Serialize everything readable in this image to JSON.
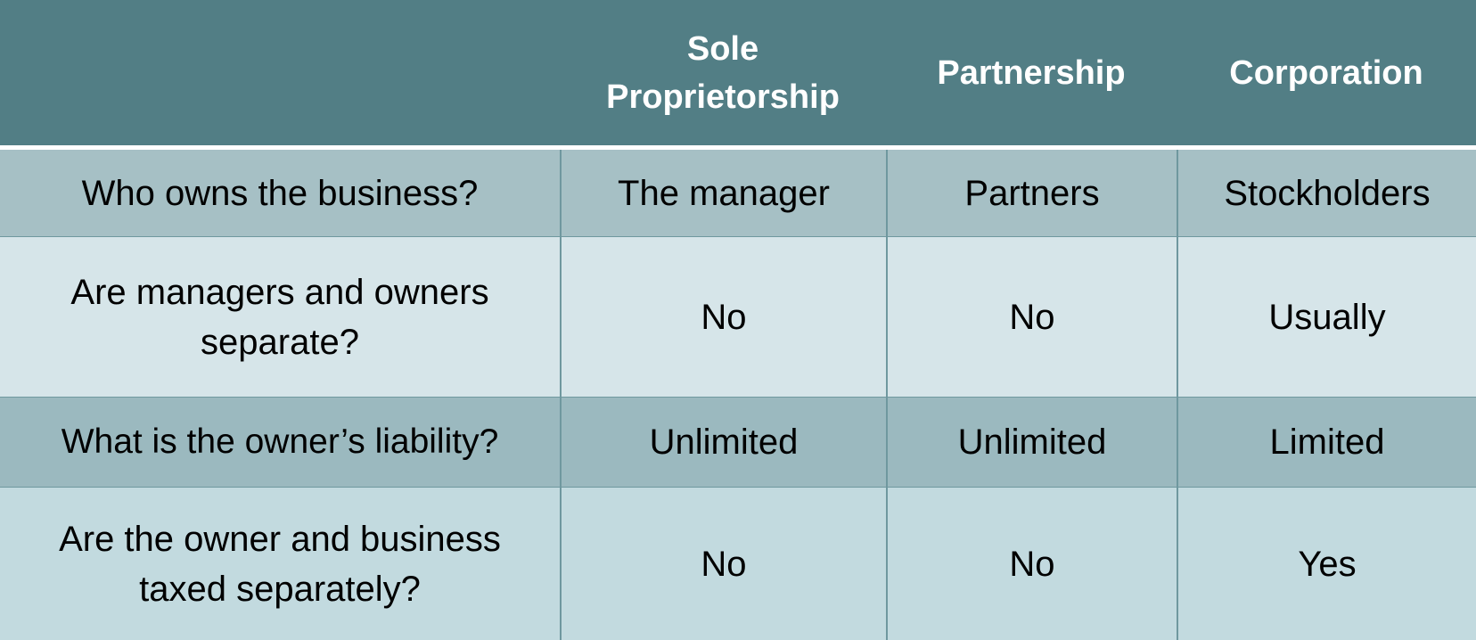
{
  "header": {
    "corner": "",
    "columns": [
      "Sole Proprietorship",
      "Partnership",
      "Corporation"
    ]
  },
  "rows": [
    {
      "question": "Who owns the business?",
      "values": [
        "The manager",
        "Partners",
        "Stockholders"
      ]
    },
    {
      "question": "Are managers and owners separate?",
      "values": [
        "No",
        "No",
        "Usually"
      ]
    },
    {
      "question": "What is the owner’s liability?",
      "values": [
        "Unlimited",
        "Unlimited",
        "Limited"
      ]
    },
    {
      "question": "Are the owner and business taxed separately?",
      "values": [
        "No",
        "No",
        "Yes"
      ]
    }
  ],
  "colors": {
    "header_bg": "#527e85",
    "header_text": "#ffffff",
    "row_dark": "#a6c0c5",
    "row_light": "#d6e5e9",
    "row_dark_2": "#9bb9bf",
    "row_light_2": "#c2dadf",
    "grid_line": "#6f989f"
  }
}
